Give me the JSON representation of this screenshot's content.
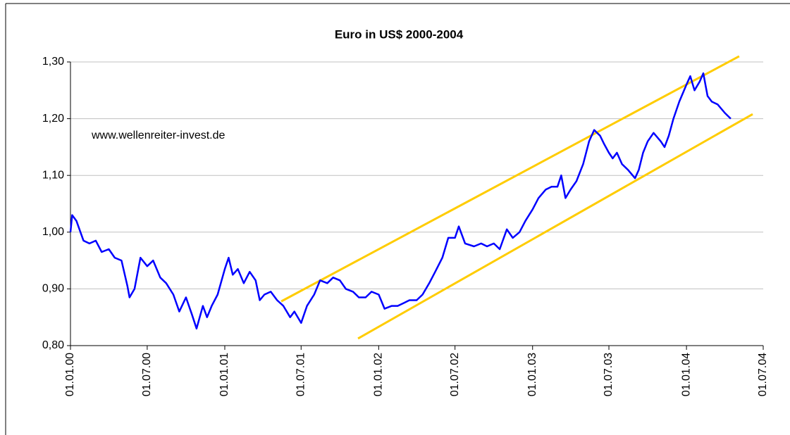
{
  "chart_data": {
    "type": "line",
    "title": "Euro in US$ 2000-2004",
    "annotation": "www.wellenreiter-invest.de",
    "grid": true,
    "ylim": [
      0.8,
      1.3
    ],
    "yticks": [
      {
        "value": 0.8,
        "label": "0,80"
      },
      {
        "value": 0.9,
        "label": "0,90"
      },
      {
        "value": 1.0,
        "label": "1,00"
      },
      {
        "value": 1.1,
        "label": "1,10"
      },
      {
        "value": 1.2,
        "label": "1,20"
      },
      {
        "value": 1.3,
        "label": "1,30"
      }
    ],
    "xlim": [
      "01.01.00",
      "01.07.04"
    ],
    "xticks": [
      "01.01.00",
      "01.07.00",
      "01.01.01",
      "01.07.01",
      "01.01.02",
      "01.07.02",
      "01.01.03",
      "01.07.03",
      "01.01.04",
      "01.07.04"
    ],
    "series": [
      {
        "name": "Euro in US$",
        "color": "#0000ff",
        "x": [
          "01.01.00",
          "05.01.00",
          "15.01.00",
          "01.02.00",
          "15.02.00",
          "01.03.00",
          "15.03.00",
          "01.04.00",
          "15.04.00",
          "01.05.00",
          "15.05.00",
          "20.05.00",
          "01.06.00",
          "15.06.00",
          "01.07.00",
          "15.07.00",
          "01.08.00",
          "15.08.00",
          "01.09.00",
          "15.09.00",
          "01.10.00",
          "15.10.00",
          "26.10.00",
          "10.11.00",
          "20.11.00",
          "01.12.00",
          "15.12.00",
          "01.01.01",
          "10.01.01",
          "20.01.01",
          "01.02.01",
          "15.02.01",
          "01.03.01",
          "15.03.01",
          "25.03.01",
          "05.04.01",
          "20.04.01",
          "05.05.01",
          "20.05.01",
          "05.06.01",
          "15.06.01",
          "01.07.01",
          "15.07.01",
          "01.08.01",
          "15.08.01",
          "01.09.01",
          "15.09.01",
          "01.10.01",
          "15.10.01",
          "01.11.01",
          "15.11.01",
          "01.12.01",
          "15.12.01",
          "01.01.02",
          "15.01.02",
          "01.02.02",
          "15.02.02",
          "01.03.02",
          "15.03.02",
          "01.04.02",
          "15.04.02",
          "01.05.02",
          "15.05.02",
          "01.06.02",
          "15.06.02",
          "01.07.02",
          "10.07.02",
          "25.07.02",
          "15.08.02",
          "01.09.02",
          "15.09.02",
          "01.10.02",
          "15.10.02",
          "01.11.02",
          "15.11.02",
          "01.12.02",
          "15.12.02",
          "01.01.03",
          "15.01.03",
          "01.02.03",
          "15.02.03",
          "01.03.03",
          "10.03.03",
          "20.03.03",
          "01.04.03",
          "15.04.03",
          "01.05.03",
          "15.05.03",
          "27.05.03",
          "10.06.03",
          "20.06.03",
          "01.07.03",
          "10.07.03",
          "20.07.03",
          "01.08.03",
          "15.08.03",
          "01.09.03",
          "10.09.03",
          "20.09.03",
          "01.10.03",
          "15.10.03",
          "01.11.03",
          "10.11.03",
          "20.11.03",
          "01.12.03",
          "15.12.03",
          "01.01.04",
          "10.01.04",
          "20.01.04",
          "01.02.04",
          "10.02.04",
          "20.02.04",
          "01.03.04",
          "15.03.04",
          "01.04.04",
          "15.04.04"
        ],
        "values": [
          1.0,
          1.03,
          1.02,
          0.985,
          0.98,
          0.985,
          0.965,
          0.97,
          0.955,
          0.95,
          0.905,
          0.885,
          0.9,
          0.955,
          0.94,
          0.95,
          0.92,
          0.91,
          0.89,
          0.86,
          0.885,
          0.855,
          0.83,
          0.87,
          0.85,
          0.87,
          0.89,
          0.935,
          0.955,
          0.925,
          0.935,
          0.91,
          0.93,
          0.915,
          0.88,
          0.89,
          0.895,
          0.88,
          0.87,
          0.85,
          0.86,
          0.84,
          0.87,
          0.89,
          0.915,
          0.91,
          0.92,
          0.915,
          0.9,
          0.895,
          0.885,
          0.885,
          0.895,
          0.89,
          0.865,
          0.87,
          0.87,
          0.875,
          0.88,
          0.88,
          0.89,
          0.91,
          0.93,
          0.955,
          0.99,
          0.99,
          1.01,
          0.98,
          0.975,
          0.98,
          0.975,
          0.98,
          0.97,
          1.005,
          0.99,
          1.0,
          1.02,
          1.04,
          1.06,
          1.075,
          1.08,
          1.08,
          1.1,
          1.06,
          1.075,
          1.09,
          1.12,
          1.16,
          1.18,
          1.17,
          1.155,
          1.14,
          1.13,
          1.14,
          1.12,
          1.11,
          1.095,
          1.11,
          1.14,
          1.16,
          1.175,
          1.16,
          1.15,
          1.17,
          1.2,
          1.23,
          1.26,
          1.275,
          1.25,
          1.265,
          1.28,
          1.24,
          1.23,
          1.225,
          1.21,
          1.2
        ]
      }
    ],
    "trend_lines": [
      {
        "color": "#ffcc00",
        "x": [
          "15.05.01",
          "05.05.04"
        ],
        "y": [
          0.878,
          1.31
        ]
      },
      {
        "color": "#ffcc00",
        "x": [
          "13.11.01",
          "06.06.04"
        ],
        "y": [
          0.8125,
          1.208
        ]
      }
    ]
  }
}
